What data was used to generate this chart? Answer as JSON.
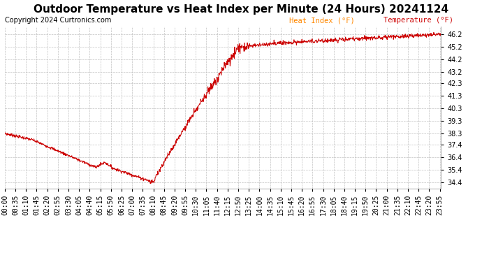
{
  "title": "Outdoor Temperature vs Heat Index per Minute (24 Hours) 20241124",
  "copyright": "Copyright 2024 Curtronics.com",
  "legend_heat": "Heat Index (°F)",
  "legend_temp": "Temperature (°F)",
  "background_color": "#ffffff",
  "plot_bg_color": "#ffffff",
  "grid_color": "#bbbbbb",
  "line_color": "#cc0000",
  "ylim_min": 33.9,
  "ylim_max": 46.85,
  "yticks": [
    34.4,
    35.4,
    36.4,
    37.4,
    38.3,
    39.3,
    40.3,
    41.3,
    42.3,
    43.2,
    44.2,
    45.2,
    46.2
  ],
  "title_fontsize": 11,
  "tick_fontsize": 7,
  "copyright_fontsize": 7,
  "legend_fontsize": 7.5,
  "legend_heat_color": "#ff8800",
  "legend_temp_color": "#cc0000"
}
